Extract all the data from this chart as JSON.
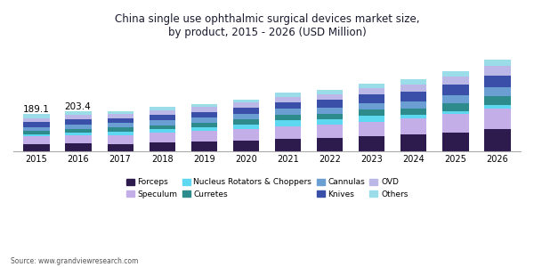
{
  "title": "China single use ophthalmic surgical devices market size,\nby product, 2015 - 2026 (USD Million)",
  "source": "Source: www.grandviewresearch.com",
  "years": [
    2015,
    2016,
    2017,
    2018,
    2019,
    2020,
    2021,
    2022,
    2023,
    2024,
    2025,
    2026
  ],
  "categories": [
    "Forceps",
    "Speculum",
    "Nucleus Rotators & Choppers",
    "Curretes",
    "Cannulas",
    "Knives",
    "OVD",
    "Others"
  ],
  "colors": [
    "#2d1b4e",
    "#c4aee8",
    "#5dd8f0",
    "#2e8b8b",
    "#6b9fd4",
    "#3a4fa8",
    "#bbb8e8",
    "#9adde8"
  ],
  "data": {
    "Forceps": [
      36,
      40,
      38,
      44,
      50,
      54,
      62,
      68,
      76,
      86,
      98,
      112
    ],
    "Speculum": [
      40,
      42,
      44,
      50,
      54,
      60,
      66,
      70,
      76,
      84,
      92,
      105
    ],
    "Nucleus Rotators & Choppers": [
      12,
      16,
      20,
      18,
      20,
      24,
      32,
      26,
      30,
      14,
      16,
      20
    ],
    "Curretes": [
      16,
      18,
      20,
      22,
      22,
      24,
      26,
      28,
      30,
      34,
      38,
      42
    ],
    "Cannulas": [
      20,
      22,
      24,
      26,
      26,
      28,
      30,
      32,
      34,
      38,
      42,
      48
    ],
    "Knives": [
      24,
      26,
      24,
      28,
      30,
      32,
      34,
      38,
      42,
      46,
      52,
      60
    ],
    "OVD": [
      22,
      20,
      20,
      22,
      24,
      26,
      28,
      30,
      34,
      38,
      42,
      48
    ],
    "Others": [
      19,
      19,
      16,
      15,
      16,
      17,
      20,
      22,
      24,
      26,
      28,
      32
    ]
  },
  "bar_annotations": {
    "2015": "189.1",
    "2016": "203.4"
  },
  "background_color": "#ffffff",
  "title_fontsize": 8.5,
  "legend_fontsize": 6.5,
  "tick_fontsize": 7,
  "annotation_fontsize": 7.5
}
